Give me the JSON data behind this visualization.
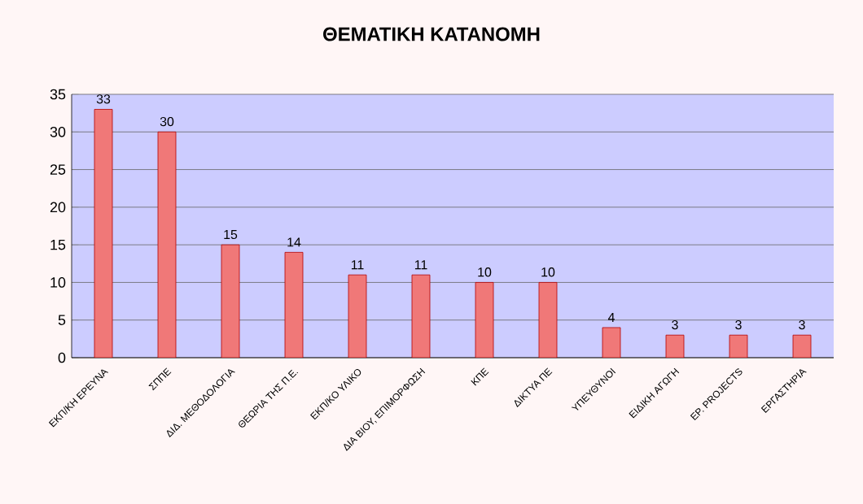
{
  "chart_data": {
    "type": "bar",
    "title": "ΘΕΜΑΤΙΚΗ ΚΑΤΑΝΟΜΗ",
    "categories": [
      "ΕΚΠ/ΚΗ ΕΡΕΥΝΑ",
      "ΣΠΠΕ",
      "ΔΙΔ. ΜΕΘΟΔΟΛΟΓΙΑ",
      "ΘΕΩΡΙΑ ΤΗΣ Π.Ε.",
      "ΕΚΠ/ΚΟ ΥΛΙΚΟ",
      "ΔΙΑ ΒΙΟΥ, ΕΠΙΜΟΡΦΩΣΗ",
      "ΚΠΕ",
      "ΔΙΚΤΥΑ ΠΕ",
      "ΥΠΕΥΘΥΝΟΙ",
      "ΕΙΔΙΚΗ ΑΓΩΓΗ",
      "ΕΡ. PROJECTS",
      "ΕΡΓΑΣΤΗΡΙΑ"
    ],
    "values": [
      33,
      30,
      15,
      14,
      11,
      11,
      10,
      10,
      4,
      3,
      3,
      3
    ],
    "color": "#f07878",
    "ylim": [
      0,
      35
    ],
    "yticks": [
      0,
      5,
      10,
      15,
      20,
      25,
      30,
      35
    ],
    "grid": "y",
    "data_labels": true
  }
}
